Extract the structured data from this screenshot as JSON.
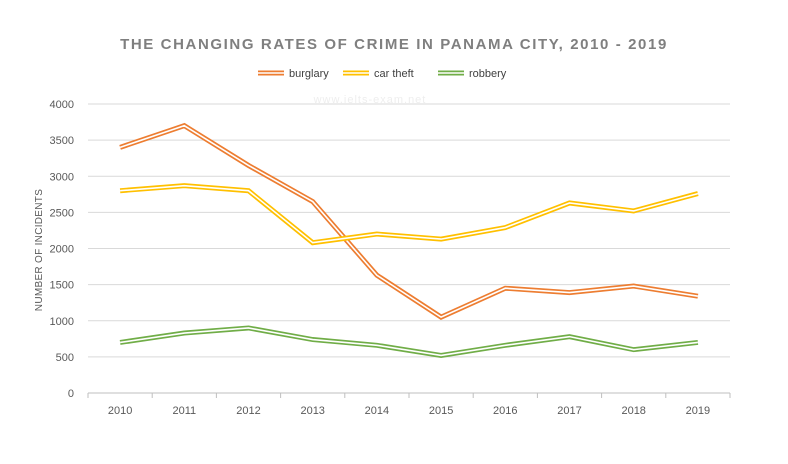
{
  "chart_data": {
    "type": "line",
    "title": "THE CHANGING RATES OF CRIME IN PANAMA CITY, 2010 - 2019",
    "xlabel": "",
    "ylabel": "NUMBER OF INCIDENTS",
    "categories": [
      "2010",
      "2011",
      "2012",
      "2013",
      "2014",
      "2015",
      "2016",
      "2017",
      "2018",
      "2019"
    ],
    "ylim": [
      0,
      4000
    ],
    "yticks": [
      "0",
      "500",
      "1000",
      "1500",
      "2000",
      "2500",
      "3000",
      "3500",
      "4000"
    ],
    "grid": true,
    "legend_position": "top-center",
    "watermark": "www.ielts-exam.net",
    "series": [
      {
        "name": "burglary",
        "color": "#ed7d31",
        "values": [
          3400,
          3700,
          3150,
          2650,
          1630,
          1050,
          1450,
          1390,
          1480,
          1340
        ]
      },
      {
        "name": "car theft",
        "color": "#ffc000",
        "values": [
          2800,
          2870,
          2800,
          2080,
          2200,
          2130,
          2290,
          2630,
          2520,
          2760
        ]
      },
      {
        "name": "robbery",
        "color": "#70ad47",
        "values": [
          700,
          830,
          900,
          740,
          660,
          520,
          660,
          780,
          600,
          700
        ]
      }
    ]
  }
}
